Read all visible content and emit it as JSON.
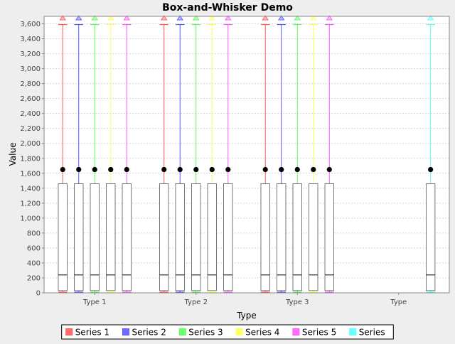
{
  "chart_data": {
    "type": "box",
    "title": "Box-and-Whisker Demo",
    "xlabel": "Type",
    "ylabel": "Value",
    "ylim": [
      0,
      3700
    ],
    "yticks": [
      0,
      200,
      400,
      600,
      800,
      1000,
      1200,
      1400,
      1600,
      1800,
      2000,
      2200,
      2400,
      2600,
      2800,
      3000,
      3200,
      3400,
      3600
    ],
    "ytick_labels": [
      "0",
      "200",
      "400",
      "600",
      "800",
      "1,000",
      "1,200",
      "1,400",
      "1,600",
      "1,800",
      "2,000",
      "2,200",
      "2,400",
      "2,600",
      "2,800",
      "3,000",
      "3,200",
      "3,400",
      "3,600"
    ],
    "grid": true,
    "legend_position": "bottom",
    "categories": [
      "Type 1",
      "Type 2",
      "Type 3",
      "Type"
    ],
    "series": [
      {
        "name": "Series 1",
        "color": "#ff5555",
        "boxes": [
          {
            "category": 0,
            "min": 10,
            "q1": 30,
            "median": 240,
            "q3": 1460,
            "max": 3590,
            "mean": 1650,
            "outlier": 3680
          },
          {
            "category": 1,
            "min": 10,
            "q1": 30,
            "median": 240,
            "q3": 1460,
            "max": 3590,
            "mean": 1650,
            "outlier": 3680
          },
          {
            "category": 2,
            "min": 10,
            "q1": 30,
            "median": 240,
            "q3": 1460,
            "max": 3590,
            "mean": 1650,
            "outlier": 3680
          }
        ]
      },
      {
        "name": "Series 2",
        "color": "#5555ff",
        "boxes": [
          {
            "category": 0,
            "min": 10,
            "q1": 30,
            "median": 240,
            "q3": 1460,
            "max": 3590,
            "mean": 1650,
            "outlier": 3680
          },
          {
            "category": 1,
            "min": 10,
            "q1": 30,
            "median": 240,
            "q3": 1460,
            "max": 3590,
            "mean": 1650,
            "outlier": 3680
          },
          {
            "category": 2,
            "min": 10,
            "q1": 30,
            "median": 240,
            "q3": 1460,
            "max": 3590,
            "mean": 1650,
            "outlier": 3680
          }
        ]
      },
      {
        "name": "Series 3",
        "color": "#55ff55",
        "boxes": [
          {
            "category": 0,
            "min": 10,
            "q1": 30,
            "median": 240,
            "q3": 1460,
            "max": 3590,
            "mean": 1650,
            "outlier": 3680
          },
          {
            "category": 1,
            "min": 10,
            "q1": 30,
            "median": 240,
            "q3": 1460,
            "max": 3590,
            "mean": 1650,
            "outlier": 3680
          },
          {
            "category": 2,
            "min": 10,
            "q1": 30,
            "median": 240,
            "q3": 1460,
            "max": 3590,
            "mean": 1650,
            "outlier": 3680
          }
        ]
      },
      {
        "name": "Series 4",
        "color": "#ffff55",
        "boxes": [
          {
            "category": 0,
            "min": 10,
            "q1": 30,
            "median": 240,
            "q3": 1460,
            "max": 3590,
            "mean": 1650,
            "outlier": 3680
          },
          {
            "category": 1,
            "min": 10,
            "q1": 30,
            "median": 240,
            "q3": 1460,
            "max": 3590,
            "mean": 1650,
            "outlier": 3680
          },
          {
            "category": 2,
            "min": 10,
            "q1": 30,
            "median": 240,
            "q3": 1460,
            "max": 3590,
            "mean": 1650,
            "outlier": 3680
          }
        ]
      },
      {
        "name": "Series 5",
        "color": "#ff55ff",
        "boxes": [
          {
            "category": 0,
            "min": 10,
            "q1": 30,
            "median": 240,
            "q3": 1460,
            "max": 3590,
            "mean": 1650,
            "outlier": 3680
          },
          {
            "category": 1,
            "min": 10,
            "q1": 30,
            "median": 240,
            "q3": 1460,
            "max": 3590,
            "mean": 1650,
            "outlier": 3680
          },
          {
            "category": 2,
            "min": 10,
            "q1": 30,
            "median": 240,
            "q3": 1460,
            "max": 3590,
            "mean": 1650,
            "outlier": 3680
          }
        ]
      },
      {
        "name": "Series",
        "color": "#55ffff",
        "boxes": [
          {
            "category": 3,
            "min": 10,
            "q1": 30,
            "median": 240,
            "q3": 1460,
            "max": 3590,
            "mean": 1650,
            "outlier": 3680
          }
        ]
      }
    ]
  }
}
